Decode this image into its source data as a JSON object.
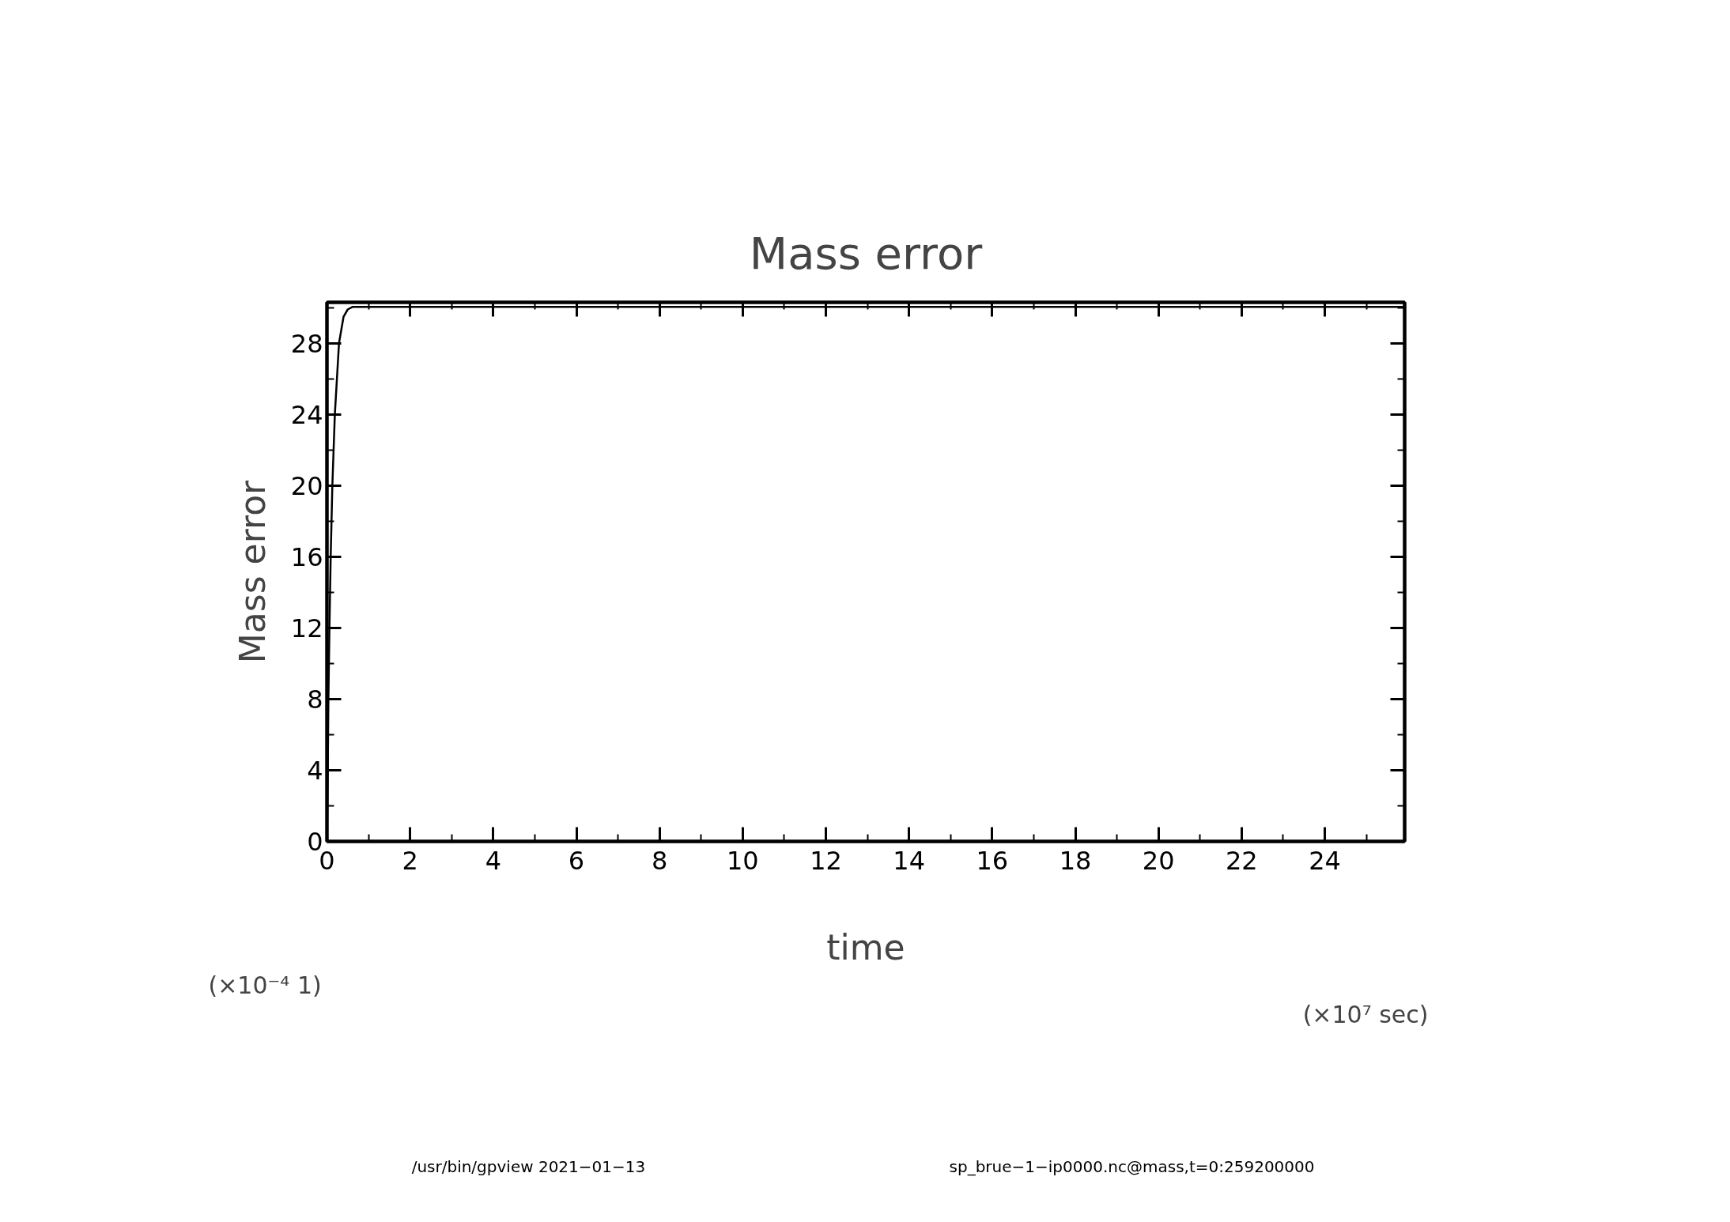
{
  "chart_data": {
    "type": "line",
    "title": "Mass error",
    "xlabel": "time",
    "ylabel": "Mass error",
    "x": [
      0,
      0.01,
      0.02,
      0.035,
      0.06,
      0.09,
      0.13,
      0.19,
      0.29,
      0.4,
      0.5,
      0.62,
      1,
      5,
      10,
      15,
      20,
      25.92
    ],
    "series": [
      {
        "color": "#000000",
        "values": [
          0,
          2,
          4,
          8,
          12,
          16,
          20,
          24,
          28,
          29.5,
          29.9,
          30.05,
          30.05,
          30.05,
          30.05,
          30.05,
          30.05,
          30.05
        ]
      }
    ],
    "xlim": [
      0,
      25.92
    ],
    "ylim": [
      0,
      30.3
    ],
    "xticks": [
      0,
      {
        "value": 1,
        "label": null
      },
      2,
      {
        "value": 3,
        "label": null
      },
      4,
      {
        "value": 5,
        "label": null
      },
      6,
      {
        "value": 7,
        "label": null
      },
      8,
      {
        "value": 9,
        "label": null
      },
      10,
      {
        "value": 11,
        "label": null
      },
      12,
      {
        "value": 13,
        "label": null
      },
      14,
      {
        "value": 15,
        "label": null
      },
      16,
      {
        "value": 17,
        "label": null
      },
      18,
      {
        "value": 19,
        "label": null
      },
      20,
      {
        "value": 21,
        "label": null
      },
      22,
      {
        "value": 23,
        "label": null
      },
      24,
      {
        "value": 25,
        "label": null
      }
    ],
    "yticks": [
      0,
      {
        "value": 2,
        "label": null
      },
      4,
      {
        "value": 6,
        "label": null
      },
      8,
      {
        "value": 10,
        "label": null
      },
      12,
      {
        "value": 14,
        "label": null
      },
      16,
      {
        "value": 18,
        "label": null
      },
      20,
      {
        "value": 22,
        "label": null
      },
      24,
      {
        "value": 26,
        "label": null
      },
      28,
      {
        "value": 30,
        "label": null
      }
    ],
    "grid": false,
    "marker": "none",
    "line_style": "solid",
    "annotations": [
      "(×10⁻⁴ 1)",
      "(×10⁷ sec)",
      "/usr/bin/gpview  2021−01−13",
      "sp_brue−1−ip0000.nc@mass,t=0:259200000"
    ]
  }
}
